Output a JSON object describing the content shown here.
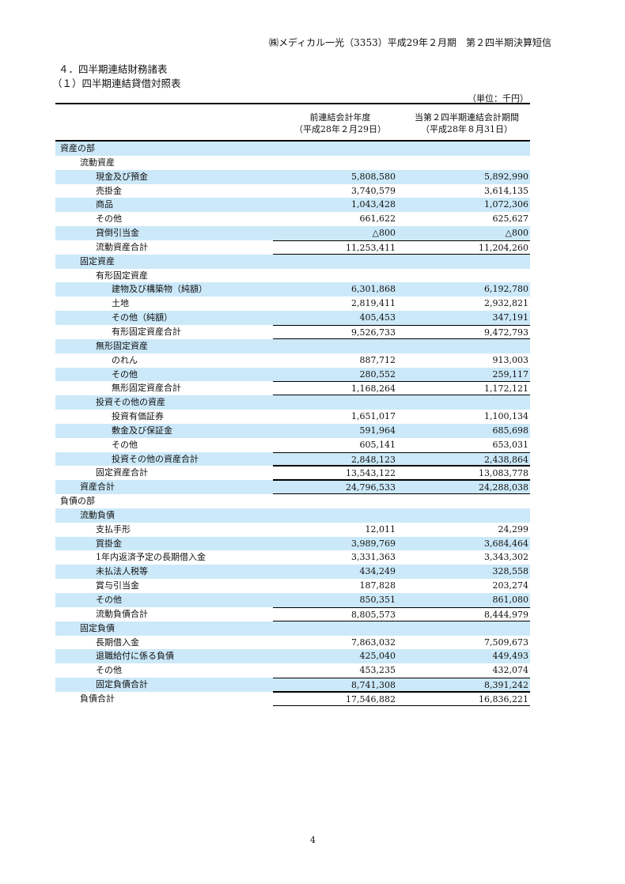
{
  "header": "㈱メディカル一光（3353）平成29年２月期　第２四半期決算短信",
  "section_title": "４．四半期連結財務諸表",
  "subsection_title": "（１）四半期連結貸借対照表",
  "unit": "（単位：千円）",
  "columns": {
    "prev": [
      "前連結会計年度",
      "（平成28年２月29日）"
    ],
    "curr": [
      "当第２四半期連結会計期間",
      "（平成28年８月31日）"
    ]
  },
  "colors": {
    "stripe": "#cce9f9"
  },
  "rows": [
    {
      "label": "資産の部",
      "level": 0,
      "prev": "",
      "curr": ""
    },
    {
      "label": "流動資産",
      "level": 1,
      "prev": "",
      "curr": ""
    },
    {
      "label": "現金及び預金",
      "level": 2,
      "prev": "5,808,580",
      "curr": "5,892,990"
    },
    {
      "label": "売掛金",
      "level": 2,
      "prev": "3,740,579",
      "curr": "3,614,135"
    },
    {
      "label": "商品",
      "level": 2,
      "prev": "1,043,428",
      "curr": "1,072,306"
    },
    {
      "label": "その他",
      "level": 2,
      "prev": "661,622",
      "curr": "625,627"
    },
    {
      "label": "貸倒引当金",
      "level": 2,
      "prev": "△800",
      "curr": "△800"
    },
    {
      "label": "流動資産合計",
      "level": 2,
      "prev": "11,253,411",
      "curr": "11,204,260",
      "total": true
    },
    {
      "label": "固定資産",
      "level": 1,
      "prev": "",
      "curr": ""
    },
    {
      "label": "有形固定資産",
      "level": 2,
      "prev": "",
      "curr": ""
    },
    {
      "label": "建物及び構築物（純額）",
      "level": 3,
      "prev": "6,301,868",
      "curr": "6,192,780"
    },
    {
      "label": "土地",
      "level": 3,
      "prev": "2,819,411",
      "curr": "2,932,821"
    },
    {
      "label": "その他（純額）",
      "level": 3,
      "prev": "405,453",
      "curr": "347,191"
    },
    {
      "label": "有形固定資産合計",
      "level": 3,
      "prev": "9,526,733",
      "curr": "9,472,793",
      "total": true
    },
    {
      "label": "無形固定資産",
      "level": 2,
      "prev": "",
      "curr": ""
    },
    {
      "label": "のれん",
      "level": 3,
      "prev": "887,712",
      "curr": "913,003"
    },
    {
      "label": "その他",
      "level": 3,
      "prev": "280,552",
      "curr": "259,117"
    },
    {
      "label": "無形固定資産合計",
      "level": 3,
      "prev": "1,168,264",
      "curr": "1,172,121",
      "total": true
    },
    {
      "label": "投資その他の資産",
      "level": 2,
      "prev": "",
      "curr": ""
    },
    {
      "label": "投資有価証券",
      "level": 3,
      "prev": "1,651,017",
      "curr": "1,100,134"
    },
    {
      "label": "敷金及び保証金",
      "level": 3,
      "prev": "591,964",
      "curr": "685,698"
    },
    {
      "label": "その他",
      "level": 3,
      "prev": "605,141",
      "curr": "653,031"
    },
    {
      "label": "投資その他の資産合計",
      "level": 3,
      "prev": "2,848,123",
      "curr": "2,438,864",
      "total": true
    },
    {
      "label": "固定資産合計",
      "level": 2,
      "prev": "13,543,122",
      "curr": "13,083,778",
      "total": true
    },
    {
      "label": "資産合計",
      "level": 1,
      "prev": "24,796,533",
      "curr": "24,288,038",
      "total": true
    },
    {
      "label": "負債の部",
      "level": 0,
      "prev": "",
      "curr": ""
    },
    {
      "label": "流動負債",
      "level": 1,
      "prev": "",
      "curr": ""
    },
    {
      "label": "支払手形",
      "level": 2,
      "prev": "12,011",
      "curr": "24,299"
    },
    {
      "label": "買掛金",
      "level": 2,
      "prev": "3,989,769",
      "curr": "3,684,464"
    },
    {
      "label": "1年内返済予定の長期借入金",
      "level": 2,
      "prev": "3,331,363",
      "curr": "3,343,302"
    },
    {
      "label": "未払法人税等",
      "level": 2,
      "prev": "434,249",
      "curr": "328,558"
    },
    {
      "label": "賞与引当金",
      "level": 2,
      "prev": "187,828",
      "curr": "203,274"
    },
    {
      "label": "その他",
      "level": 2,
      "prev": "850,351",
      "curr": "861,080"
    },
    {
      "label": "流動負債合計",
      "level": 2,
      "prev": "8,805,573",
      "curr": "8,444,979",
      "total": true
    },
    {
      "label": "固定負債",
      "level": 1,
      "prev": "",
      "curr": ""
    },
    {
      "label": "長期借入金",
      "level": 2,
      "prev": "7,863,032",
      "curr": "7,509,673"
    },
    {
      "label": "退職給付に係る負債",
      "level": 2,
      "prev": "425,040",
      "curr": "449,493"
    },
    {
      "label": "その他",
      "level": 2,
      "prev": "453,235",
      "curr": "432,074"
    },
    {
      "label": "固定負債合計",
      "level": 2,
      "prev": "8,741,308",
      "curr": "8,391,242",
      "total": true
    },
    {
      "label": "負債合計",
      "level": 1,
      "prev": "17,546,882",
      "curr": "16,836,221",
      "total": true
    }
  ],
  "page_number": "4"
}
